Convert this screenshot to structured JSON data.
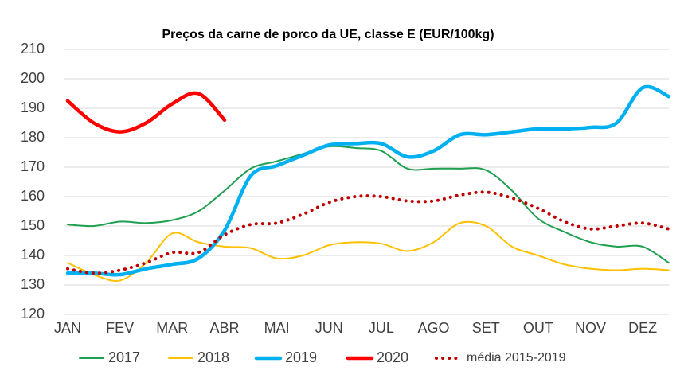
{
  "chart_data": {
    "type": "line",
    "title": "Preços da carne de porco da UE, classe E (EUR/100kg)",
    "x": [
      1,
      1.5,
      2,
      2.5,
      3,
      3.5,
      4,
      4.5,
      5,
      5.5,
      6,
      6.5,
      7,
      7.5,
      8,
      8.5,
      9,
      9.5,
      10,
      10.5,
      11,
      11.5,
      12,
      12.5
    ],
    "xlim": [
      1,
      12.5
    ],
    "xticks": [
      {
        "value": 1,
        "label": "JAN"
      },
      {
        "value": 2,
        "label": "FEV"
      },
      {
        "value": 3,
        "label": "MAR"
      },
      {
        "value": 4,
        "label": "ABR"
      },
      {
        "value": 5,
        "label": "MAI"
      },
      {
        "value": 6,
        "label": "JUN"
      },
      {
        "value": 7,
        "label": "JUL"
      },
      {
        "value": 8,
        "label": "AGO"
      },
      {
        "value": 9,
        "label": "SET"
      },
      {
        "value": 10,
        "label": "OUT"
      },
      {
        "value": 11,
        "label": "NOV"
      },
      {
        "value": 12,
        "label": "DEZ"
      }
    ],
    "ylim": [
      120,
      210
    ],
    "yticks": [
      120,
      130,
      140,
      150,
      160,
      170,
      180,
      190,
      200,
      210
    ],
    "grid": true,
    "series": [
      {
        "name": "2017",
        "color": "#1fa050",
        "values": [
          150.5,
          150,
          151.5,
          151,
          152,
          155,
          162,
          169.5,
          172,
          174.5,
          177,
          176.5,
          175.5,
          169.5,
          169.5,
          169.5,
          169,
          162,
          152.5,
          148,
          144.5,
          143,
          143,
          137.5
        ]
      },
      {
        "name": "2018",
        "color": "#ffc000",
        "values": [
          137.5,
          133.5,
          131.5,
          137.5,
          147.5,
          144.5,
          143,
          142.5,
          139,
          140,
          143.5,
          144.5,
          144,
          141.5,
          144.5,
          151,
          150,
          143,
          140,
          137,
          135.5,
          135,
          135.5,
          135
        ]
      },
      {
        "name": "2019",
        "color": "#00b0f0",
        "values": [
          134,
          134,
          133.5,
          135.5,
          137,
          139,
          148.5,
          167,
          170.5,
          174,
          177.5,
          178,
          178,
          173.5,
          175.5,
          181,
          181,
          182,
          183,
          183,
          183.5,
          185,
          197,
          194
        ]
      },
      {
        "name": "2020",
        "color": "#ff0000",
        "values": [
          192.5,
          185,
          182,
          185,
          191.5,
          195,
          186,
          null,
          null,
          null,
          null,
          null,
          null,
          null,
          null,
          null,
          null,
          null,
          null,
          null,
          null,
          null,
          null,
          null
        ]
      },
      {
        "name": "média 2015-2019",
        "color": "#c00000",
        "dash": "dotted",
        "values": [
          135.5,
          134,
          135,
          137.5,
          141,
          141,
          147,
          150.5,
          151,
          154,
          158,
          160,
          160,
          158.5,
          158.5,
          160.5,
          161.5,
          159.5,
          156,
          151.5,
          149,
          150,
          151,
          149
        ]
      }
    ]
  }
}
